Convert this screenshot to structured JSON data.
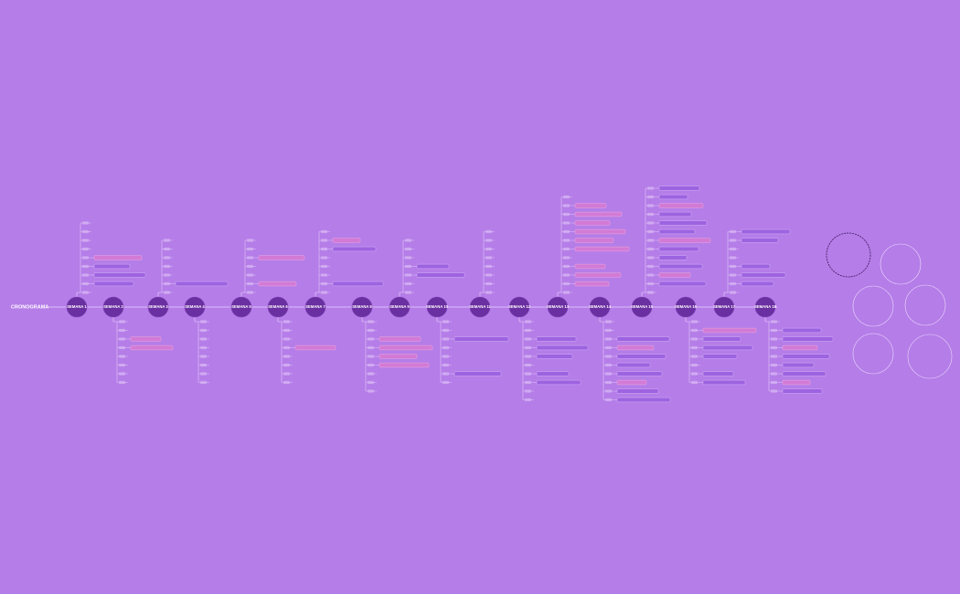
{
  "title": "CRONOGRAMA",
  "weeks": [
    "SEMANA 1",
    "SEMANA 2",
    "SEMANA 3",
    "SEMANA 4",
    "SEMANA 5",
    "SEMANA 6",
    "SEMANA 7",
    "SEMANA 8",
    "SEMANA 9",
    "SEMANA 10",
    "SEMANA 11",
    "SEMANA 12",
    "SEMANA 13",
    "SEMANA 14",
    "SEMANA 15",
    "SEMANA 16",
    "SEMANA 17",
    "SEMANA 18"
  ]
}
